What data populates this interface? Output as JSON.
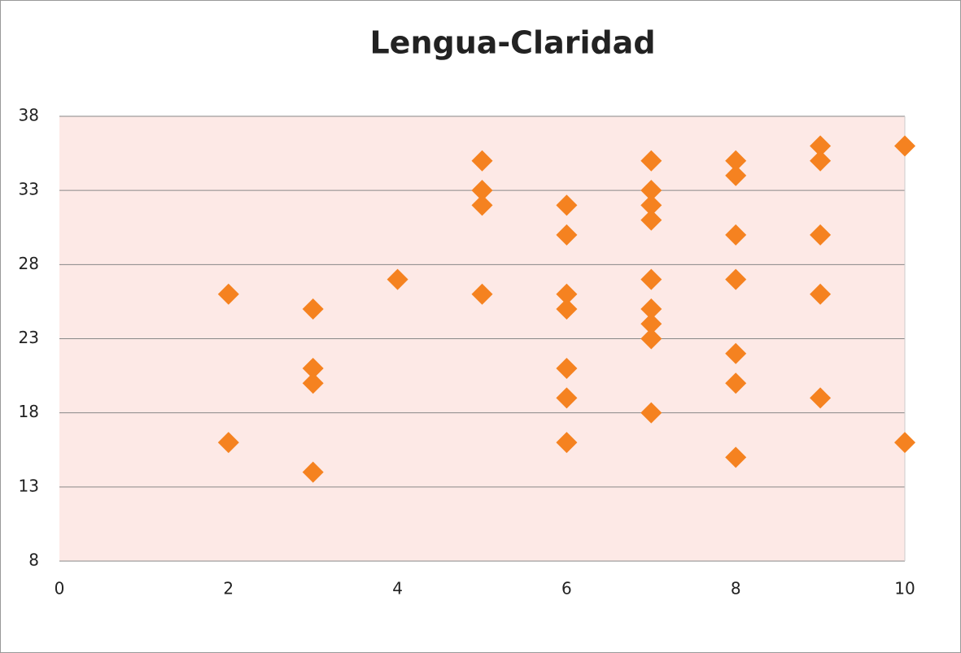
{
  "chart_data": {
    "type": "scatter",
    "title": "Lengua-Claridad",
    "x": [
      2,
      2,
      3,
      3,
      3,
      3,
      4,
      5,
      5,
      5,
      5,
      6,
      6,
      6,
      6,
      6,
      6,
      6,
      7,
      7,
      7,
      7,
      7,
      7,
      7,
      7,
      7,
      8,
      8,
      8,
      8,
      8,
      8,
      8,
      9,
      9,
      9,
      9,
      9,
      10,
      10
    ],
    "values": [
      26,
      16,
      25,
      21,
      20,
      14,
      27,
      35,
      33,
      32,
      26,
      32,
      30,
      26,
      25,
      21,
      19,
      16,
      35,
      33,
      32,
      31,
      27,
      25,
      24,
      23,
      18,
      35,
      34,
      30,
      27,
      22,
      20,
      15,
      36,
      35,
      30,
      26,
      19,
      36,
      16
    ],
    "color": "#f58220",
    "xlim": [
      0,
      10
    ],
    "xticks": [
      0,
      2,
      4,
      6,
      8,
      10
    ],
    "ylim": [
      8,
      38
    ],
    "yticks": [
      8,
      13,
      18,
      23,
      28,
      33,
      38
    ],
    "grid": true
  }
}
